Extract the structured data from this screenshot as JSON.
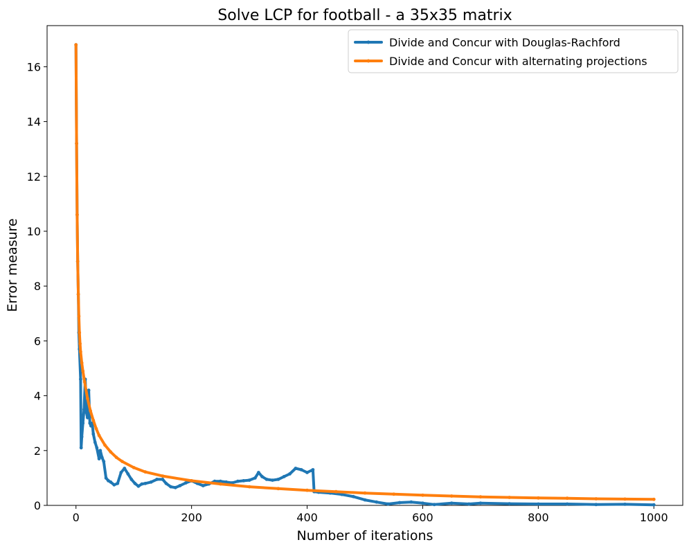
{
  "chart_data": {
    "type": "line",
    "title": "Solve LCP for football - a 35x35 matrix",
    "xlabel": "Number of iterations",
    "ylabel": "Error measure",
    "xlim": [
      -50,
      1050
    ],
    "ylim": [
      0,
      17.5
    ],
    "xticks": [
      0,
      200,
      400,
      600,
      800,
      1000
    ],
    "yticks": [
      0,
      2,
      4,
      6,
      8,
      10,
      12,
      14,
      16
    ],
    "grid": false,
    "legend_position": "top-right",
    "series": [
      {
        "name": "Divide and Concur with Douglas-Rachford",
        "color": "#1f77b4",
        "points": [
          [
            0,
            16.8
          ],
          [
            1,
            13.2
          ],
          [
            2,
            10.6
          ],
          [
            3,
            8.9
          ],
          [
            4,
            7.7
          ],
          [
            5,
            6.3
          ],
          [
            6,
            5.7
          ],
          [
            8,
            4.6
          ],
          [
            9,
            2.1
          ],
          [
            10,
            2.5
          ],
          [
            12,
            3.0
          ],
          [
            14,
            3.5
          ],
          [
            16,
            4.6
          ],
          [
            18,
            3.4
          ],
          [
            20,
            3.2
          ],
          [
            22,
            4.2
          ],
          [
            24,
            3.0
          ],
          [
            26,
            2.9
          ],
          [
            28,
            3.0
          ],
          [
            30,
            2.6
          ],
          [
            33,
            2.3
          ],
          [
            36,
            2.1
          ],
          [
            40,
            1.7
          ],
          [
            42,
            2.0
          ],
          [
            45,
            1.75
          ],
          [
            48,
            1.6
          ],
          [
            52,
            1.0
          ],
          [
            56,
            0.9
          ],
          [
            60,
            0.85
          ],
          [
            66,
            0.75
          ],
          [
            72,
            0.8
          ],
          [
            78,
            1.2
          ],
          [
            84,
            1.35
          ],
          [
            90,
            1.15
          ],
          [
            96,
            0.95
          ],
          [
            102,
            0.8
          ],
          [
            108,
            0.7
          ],
          [
            114,
            0.78
          ],
          [
            120,
            0.8
          ],
          [
            130,
            0.85
          ],
          [
            140,
            0.95
          ],
          [
            150,
            0.95
          ],
          [
            156,
            0.8
          ],
          [
            164,
            0.68
          ],
          [
            172,
            0.65
          ],
          [
            180,
            0.72
          ],
          [
            190,
            0.82
          ],
          [
            200,
            0.9
          ],
          [
            210,
            0.8
          ],
          [
            220,
            0.72
          ],
          [
            230,
            0.78
          ],
          [
            240,
            0.88
          ],
          [
            250,
            0.88
          ],
          [
            260,
            0.85
          ],
          [
            270,
            0.82
          ],
          [
            280,
            0.88
          ],
          [
            290,
            0.9
          ],
          [
            300,
            0.92
          ],
          [
            310,
            1.0
          ],
          [
            316,
            1.2
          ],
          [
            322,
            1.05
          ],
          [
            330,
            0.95
          ],
          [
            340,
            0.92
          ],
          [
            350,
            0.95
          ],
          [
            360,
            1.05
          ],
          [
            370,
            1.15
          ],
          [
            380,
            1.35
          ],
          [
            390,
            1.3
          ],
          [
            400,
            1.2
          ],
          [
            410,
            1.3
          ],
          [
            412,
            0.5
          ],
          [
            420,
            0.48
          ],
          [
            440,
            0.45
          ],
          [
            460,
            0.4
          ],
          [
            480,
            0.32
          ],
          [
            500,
            0.2
          ],
          [
            520,
            0.12
          ],
          [
            540,
            0.05
          ],
          [
            560,
            0.1
          ],
          [
            580,
            0.12
          ],
          [
            600,
            0.08
          ],
          [
            620,
            0.03
          ],
          [
            650,
            0.08
          ],
          [
            680,
            0.05
          ],
          [
            700,
            0.08
          ],
          [
            750,
            0.06
          ],
          [
            800,
            0.05
          ],
          [
            850,
            0.05
          ],
          [
            900,
            0.03
          ],
          [
            950,
            0.04
          ],
          [
            1000,
            0.02
          ]
        ]
      },
      {
        "name": "Divide and Concur with alternating projections",
        "color": "#ff7f0e",
        "points": [
          [
            0,
            16.8
          ],
          [
            1,
            13.2
          ],
          [
            2,
            10.6
          ],
          [
            3,
            8.9
          ],
          [
            4,
            7.7
          ],
          [
            5,
            6.9
          ],
          [
            6,
            6.3
          ],
          [
            7,
            5.9
          ],
          [
            8,
            5.6
          ],
          [
            10,
            5.2
          ],
          [
            12,
            4.9
          ],
          [
            15,
            4.5
          ],
          [
            20,
            3.9
          ],
          [
            25,
            3.45
          ],
          [
            30,
            3.1
          ],
          [
            35,
            2.8
          ],
          [
            40,
            2.55
          ],
          [
            50,
            2.2
          ],
          [
            60,
            1.95
          ],
          [
            70,
            1.75
          ],
          [
            80,
            1.6
          ],
          [
            100,
            1.38
          ],
          [
            120,
            1.22
          ],
          [
            150,
            1.07
          ],
          [
            200,
            0.9
          ],
          [
            250,
            0.78
          ],
          [
            300,
            0.68
          ],
          [
            350,
            0.61
          ],
          [
            400,
            0.55
          ],
          [
            450,
            0.5
          ],
          [
            500,
            0.45
          ],
          [
            550,
            0.41
          ],
          [
            600,
            0.37
          ],
          [
            650,
            0.34
          ],
          [
            700,
            0.31
          ],
          [
            750,
            0.29
          ],
          [
            800,
            0.27
          ],
          [
            850,
            0.26
          ],
          [
            900,
            0.24
          ],
          [
            950,
            0.23
          ],
          [
            1000,
            0.22
          ]
        ]
      }
    ]
  }
}
